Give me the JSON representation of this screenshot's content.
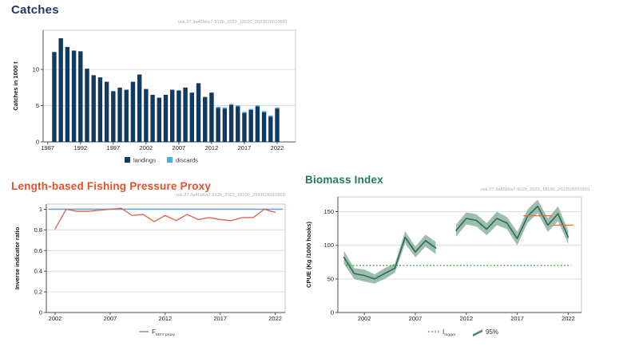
{
  "page": {
    "background": "#ffffff"
  },
  "panels": {
    "catches": {
      "title": "Catches",
      "title_color": "#1f3864",
      "watermark": "usk.27.3a45b6a7-912b_2023_18100_2023526010501"
    },
    "pressure": {
      "title": "Length-based Fishing Pressure Proxy",
      "title_color": "#e8502a",
      "watermark": "usk.27.3a45b6a7-912b_2023_18100_2023526010501"
    },
    "biomass": {
      "title": "Biomass Index",
      "title_color": "#207a63",
      "watermark": "usk.27.3a45b6a7-912b_2023_18100_2023526010501"
    }
  },
  "chart_data": [
    {
      "id": "catches",
      "type": "bar",
      "stacked": true,
      "title": "Catches",
      "xlabel": "",
      "ylabel": "Catches in 1000 t",
      "categories": [
        1988,
        1989,
        1990,
        1991,
        1992,
        1993,
        1994,
        1995,
        1996,
        1997,
        1998,
        1999,
        2000,
        2001,
        2002,
        2003,
        2004,
        2005,
        2006,
        2007,
        2008,
        2009,
        2010,
        2011,
        2012,
        2013,
        2014,
        2015,
        2016,
        2017,
        2018,
        2019,
        2020,
        2021,
        2022
      ],
      "series": [
        {
          "name": "landings",
          "color": "#12395f",
          "values": [
            12.4,
            14.3,
            13.1,
            12.6,
            12.5,
            10.1,
            9.2,
            8.9,
            8.3,
            7.0,
            7.5,
            7.2,
            8.3,
            9.3,
            7.3,
            6.5,
            6.1,
            6.5,
            7.2,
            7.1,
            7.5,
            6.8,
            8.1,
            6.2,
            6.8,
            4.7,
            4.6,
            5.1,
            4.9,
            4.0,
            4.4,
            4.9,
            4.1,
            3.5,
            4.6
          ]
        },
        {
          "name": "discards",
          "color": "#3cb4e5",
          "values": [
            0,
            0,
            0,
            0,
            0,
            0,
            0,
            0,
            0,
            0,
            0,
            0,
            0,
            0,
            0,
            0,
            0,
            0,
            0,
            0,
            0,
            0,
            0,
            0,
            0,
            0.15,
            0.15,
            0.15,
            0.15,
            0.15,
            0.15,
            0.15,
            0.15,
            0.15,
            0.15
          ]
        }
      ],
      "xticks": [
        1987,
        1992,
        1997,
        2002,
        2007,
        2012,
        2017,
        2022
      ],
      "yticks": [
        0,
        5,
        10
      ],
      "xlim": [
        1986.3,
        2024.8
      ],
      "ylim": [
        0,
        15.4
      ],
      "grid": true,
      "legend_position": "bottom"
    },
    {
      "id": "pressure",
      "type": "line",
      "title": "Length-based Fishing Pressure Proxy",
      "xlabel": "",
      "ylabel": "Inverse indicator ratio",
      "x": [
        2002,
        2003,
        2004,
        2005,
        2006,
        2007,
        2008,
        2009,
        2010,
        2011,
        2012,
        2013,
        2014,
        2015,
        2016,
        2017,
        2018,
        2019,
        2020,
        2021,
        2022
      ],
      "series": [
        {
          "name": "inverse indicator ratio",
          "color": "#dd5f40",
          "width": 1.3,
          "values": [
            0.81,
            1.0,
            0.98,
            0.98,
            0.99,
            1.0,
            1.01,
            0.94,
            0.95,
            0.88,
            0.94,
            0.89,
            0.95,
            0.9,
            0.92,
            0.9,
            0.89,
            0.92,
            0.92,
            1.0,
            0.97
          ]
        }
      ],
      "reference_lines": [
        {
          "label_main": "F",
          "label_sub": "MSY proxy",
          "value": 1.0,
          "color": "#6aa3dc",
          "style": "solid"
        }
      ],
      "xticks": [
        2002,
        2007,
        2012,
        2017,
        2022
      ],
      "yticks": [
        0,
        0.2,
        0.4,
        0.6,
        0.8,
        1
      ],
      "xlim": [
        2001.2,
        2022.9
      ],
      "ylim": [
        0,
        1.05
      ],
      "grid": true,
      "legend": [
        {
          "glyph": "line",
          "color": "#6aa3dc",
          "label_main": "F",
          "label_sub": "MSY proxy"
        }
      ],
      "legend_position": "bottom"
    },
    {
      "id": "biomass",
      "type": "line",
      "subtype": "line-with-confidence-band",
      "title": "Biomass Index",
      "xlabel": "",
      "ylabel": "CPUE (Kg /1000 hooks)",
      "line_color": "#2c6b52",
      "band_color": "#84ad9b",
      "segments": [
        {
          "x": [
            2000,
            2001,
            2002,
            2003,
            2004,
            2005,
            2006,
            2007,
            2008,
            2009
          ],
          "values": [
            82,
            58,
            55,
            50,
            58,
            66,
            112,
            90,
            107,
            96
          ],
          "lo": [
            72,
            50,
            46,
            43,
            50,
            59,
            103,
            82,
            98,
            87
          ],
          "hi": [
            92,
            66,
            64,
            57,
            66,
            73,
            121,
            98,
            116,
            105
          ]
        },
        {
          "x": [
            2011,
            2012,
            2013,
            2014,
            2015,
            2016,
            2017,
            2018,
            2019,
            2020,
            2021,
            2022
          ],
          "values": [
            122,
            140,
            137,
            124,
            140,
            133,
            110,
            143,
            158,
            130,
            147,
            112
          ],
          "lo": [
            113,
            131,
            128,
            115,
            130,
            124,
            100,
            133,
            148,
            120,
            136,
            102
          ],
          "hi": [
            131,
            149,
            146,
            133,
            150,
            142,
            120,
            153,
            168,
            140,
            158,
            122
          ]
        }
      ],
      "reference_lines": [
        {
          "label_main": "I",
          "label_sub": "trigger",
          "value": 70,
          "color": "#3da03d",
          "style": "dotted",
          "x1": 2000.2,
          "x2": 2022.3
        }
      ],
      "advice_lines": [
        {
          "y": 144,
          "x1": 2017.6,
          "x2": 2020.4,
          "color": "#e4713a"
        },
        {
          "y": 130,
          "x1": 2020.5,
          "x2": 2022.5,
          "color": "#e4713a"
        }
      ],
      "xticks": [
        2002,
        2007,
        2012,
        2017,
        2022
      ],
      "yticks": [
        0,
        50,
        100,
        150
      ],
      "xlim": [
        1999.4,
        2023.3
      ],
      "ylim": [
        0,
        172
      ],
      "grid": true,
      "legend": [
        {
          "glyph": "dotted",
          "color": "#3da03d",
          "label_main": "I",
          "label_sub": "trigger"
        },
        {
          "glyph": "band",
          "color": "#84ad9b",
          "line_color": "#2c6b52",
          "label_main": "95%",
          "label_sub": ""
        }
      ],
      "legend_position": "bottom"
    }
  ]
}
